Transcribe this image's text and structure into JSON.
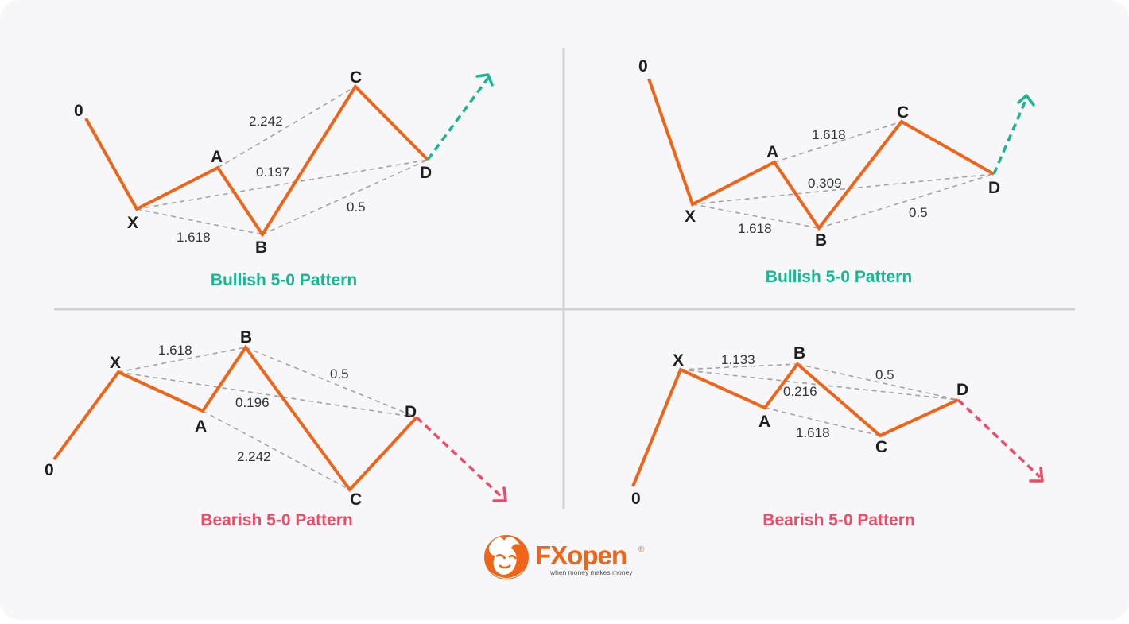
{
  "colors": {
    "background": "#f7f7f9",
    "divider": "#d2d2d2",
    "wave": "#f06418",
    "guide": "#a3a3a3",
    "bullish": "#17b890",
    "bearish": "#f04a64",
    "logo_orange": "#f06418"
  },
  "panels": [
    {
      "id": "top-left",
      "title": "Bullish 5-0 Pattern",
      "direction": "bullish",
      "point_labels": [
        "0",
        "X",
        "A",
        "B",
        "C",
        "D"
      ],
      "ratios": [
        "2.242",
        "0.197",
        "0.5",
        "1.618"
      ]
    },
    {
      "id": "top-right",
      "title": "Bullish 5-0 Pattern",
      "direction": "bullish",
      "point_labels": [
        "0",
        "X",
        "A",
        "B",
        "C",
        "D"
      ],
      "ratios": [
        "1.618",
        "0.309",
        "0.5",
        "1.618"
      ]
    },
    {
      "id": "bottom-left",
      "title": "Bearish 5-0 Pattern",
      "direction": "bearish",
      "point_labels": [
        "0",
        "X",
        "A",
        "B",
        "C",
        "D"
      ],
      "ratios": [
        "1.618",
        "0.5",
        "0.196",
        "2.242"
      ]
    },
    {
      "id": "bottom-right",
      "title": "Bearish 5-0 Pattern",
      "direction": "bearish",
      "point_labels": [
        "0",
        "X",
        "A",
        "B",
        "C",
        "D"
      ],
      "ratios": [
        "1.133",
        "0.5",
        "0.216",
        "1.618"
      ]
    }
  ],
  "logo": {
    "brand": "FXopen",
    "tagline": "when money makes money",
    "registered": "®",
    "icon": "bull-head-icon"
  }
}
